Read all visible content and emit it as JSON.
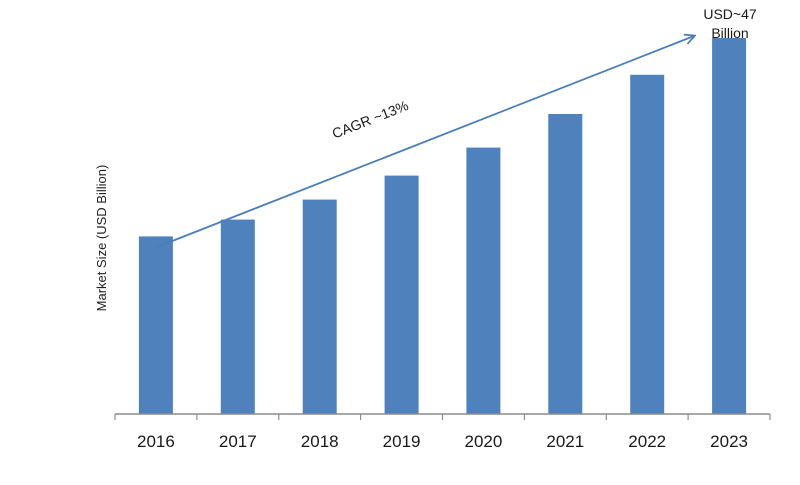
{
  "chart_data": {
    "type": "bar",
    "categories": [
      "2016",
      "2017",
      "2018",
      "2019",
      "2020",
      "2021",
      "2022",
      "2023"
    ],
    "values": [
      22.2,
      24.3,
      26.8,
      29.8,
      33.3,
      37.5,
      42.4,
      47
    ],
    "ylabel": "Market Size (USD Billion)",
    "xlabel": "",
    "ylim": [
      0,
      50
    ],
    "grid": false,
    "bar_color": "#4f81bd",
    "axis_color": "#8c8c8c",
    "arrow_color": "#4a7ebb",
    "annotations": {
      "cagr": "CAGR ~13%",
      "end_value_line1": "USD~47",
      "end_value_line2": "Billion"
    }
  }
}
